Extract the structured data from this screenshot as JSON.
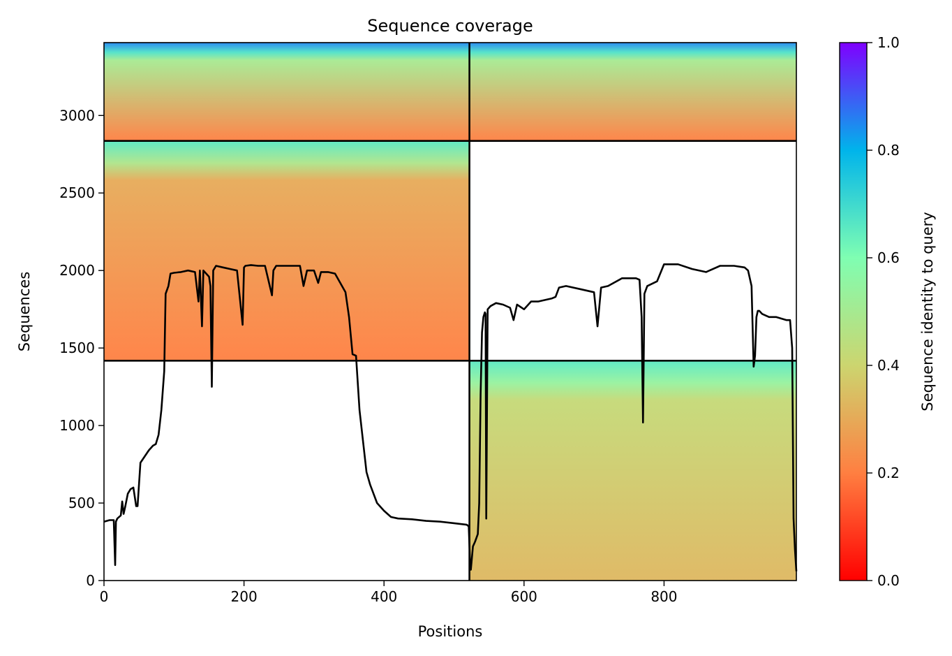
{
  "chart_data": {
    "type": "heatmap",
    "title": "Sequence coverage",
    "xlabel": "Positions",
    "ylabel": "Sequences",
    "xlim": [
      0,
      989
    ],
    "ylim": [
      0,
      3470
    ],
    "xticks": [
      0,
      200,
      400,
      600,
      800
    ],
    "yticks": [
      0,
      500,
      1000,
      1500,
      2000,
      2500,
      3000
    ],
    "grid": false,
    "colorbar": {
      "label": "Sequence identity to query",
      "colormap": "rainbow",
      "range": [
        0,
        1
      ],
      "ticks": [
        "0.0",
        "0.2",
        "0.4",
        "0.6",
        "0.8",
        "1.0"
      ],
      "stops": [
        "#ff0000",
        "#ff7f41",
        "#ccd56f",
        "#7ffeb2",
        "#00b4eb",
        "#7f00ff"
      ]
    },
    "segment_divider_x": 522,
    "block_divider_y": [
      1418,
      2836
    ],
    "blocks": [
      {
        "x_range": [
          0,
          522
        ],
        "y_range": [
          2836,
          3470
        ],
        "identity_top": 0.85,
        "identity_upper": 0.5,
        "identity_lower": 0.2
      },
      {
        "x_range": [
          522,
          989
        ],
        "y_range": [
          2836,
          3470
        ],
        "identity_top": 0.85,
        "identity_upper": 0.5,
        "identity_lower": 0.2
      },
      {
        "x_range": [
          0,
          522
        ],
        "y_range": [
          1418,
          2836
        ],
        "identity_top": 0.66,
        "identity_upper": 0.3,
        "identity_lower": 0.2
      },
      {
        "x_range": [
          522,
          989
        ],
        "y_range": [
          0,
          1418
        ],
        "identity_top": 0.66,
        "identity_upper": 0.42,
        "identity_lower": 0.33
      }
    ],
    "series": [
      {
        "type": "line",
        "color": "#000000",
        "x": [
          0,
          8,
          14,
          16,
          17,
          19,
          24,
          26,
          28,
          30,
          34,
          38,
          42,
          44,
          46,
          48,
          52,
          58,
          64,
          70,
          74,
          78,
          82,
          86,
          88,
          92,
          95,
          100,
          110,
          120,
          130,
          135,
          137,
          140,
          142,
          146,
          150,
          152,
          154,
          156,
          160,
          170,
          180,
          190,
          198,
          200,
          202,
          210,
          220,
          230,
          240,
          242,
          246,
          260,
          280,
          285,
          290,
          300,
          306,
          310,
          320,
          330,
          340,
          345,
          350,
          355,
          360,
          365,
          370,
          375,
          380,
          390,
          400,
          410,
          420,
          440,
          460,
          480,
          500,
          518,
          521,
          523,
          524,
          527,
          530,
          534,
          536,
          538,
          540,
          542,
          544,
          545,
          546,
          548,
          552,
          560,
          570,
          580,
          585,
          590,
          600,
          610,
          620,
          630,
          640,
          645,
          650,
          660,
          680,
          700,
          705,
          710,
          720,
          740,
          760,
          765,
          768,
          770,
          772,
          776,
          790,
          800,
          820,
          840,
          860,
          880,
          900,
          915,
          920,
          925,
          928,
          930,
          932,
          934,
          936,
          940,
          950,
          960,
          975,
          980,
          983,
          985,
          987,
          989
        ],
        "y": [
          380,
          390,
          390,
          100,
          380,
          400,
          420,
          510,
          430,
          470,
          560,
          590,
          600,
          540,
          480,
          480,
          760,
          800,
          840,
          870,
          880,
          940,
          1100,
          1350,
          1850,
          1900,
          1980,
          1985,
          1990,
          2000,
          1990,
          1800,
          2000,
          1640,
          2000,
          1980,
          1960,
          1900,
          1250,
          2000,
          2030,
          2020,
          2010,
          2000,
          1650,
          2020,
          2030,
          2035,
          2030,
          2030,
          1840,
          2000,
          2030,
          2030,
          2030,
          1900,
          2000,
          2000,
          1920,
          1990,
          1990,
          1980,
          1900,
          1860,
          1700,
          1460,
          1450,
          1100,
          900,
          700,
          620,
          500,
          450,
          410,
          400,
          395,
          385,
          380,
          370,
          360,
          350,
          100,
          70,
          220,
          250,
          300,
          500,
          1200,
          1600,
          1700,
          1730,
          1720,
          400,
          1750,
          1770,
          1790,
          1780,
          1760,
          1680,
          1780,
          1750,
          1800,
          1800,
          1810,
          1820,
          1830,
          1890,
          1900,
          1880,
          1860,
          1640,
          1890,
          1900,
          1950,
          1950,
          1940,
          1700,
          1020,
          1850,
          1900,
          1930,
          2040,
          2040,
          2010,
          1990,
          2030,
          2030,
          2020,
          2000,
          1900,
          1380,
          1450,
          1700,
          1740,
          1740,
          1720,
          1700,
          1700,
          1680,
          1680,
          1500,
          400,
          200,
          60
        ]
      }
    ]
  }
}
